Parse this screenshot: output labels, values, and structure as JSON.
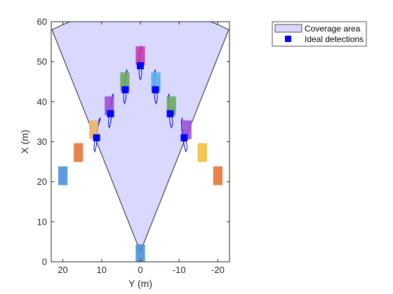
{
  "chart_data": {
    "type": "scatter",
    "xlabel": "Y (m)",
    "ylabel": "X (m)",
    "xlim": [
      23,
      -23
    ],
    "ylim": [
      0,
      60
    ],
    "x_ticks": [
      20,
      10,
      0,
      -10,
      -20
    ],
    "y_ticks": [
      0,
      10,
      20,
      30,
      40,
      50,
      60
    ],
    "x_tick_labels": [
      "20",
      "10",
      "0",
      "-10",
      "-20"
    ],
    "y_tick_labels": [
      "0",
      "10",
      "20",
      "30",
      "40",
      "50",
      "60"
    ],
    "box": true,
    "grid": false,
    "legend_position": "top-right (outside)",
    "coverage_area": {
      "apex": [
        0,
        2.5
      ],
      "left_edge_end": [
        22.8,
        58
      ],
      "right_edge_end": [
        -22.8,
        58
      ],
      "arc_peak": [
        0,
        63.5
      ],
      "color": "#d9d9ff",
      "edge_color": "#262626"
    },
    "targets": [
      {
        "y": 0,
        "x": 2,
        "color": "#4a90d9"
      },
      {
        "y": 20,
        "x": 21.5,
        "color": "#4a90d9"
      },
      {
        "y": 16,
        "x": 27.3,
        "color": "#e8743b"
      },
      {
        "y": 12,
        "x": 33,
        "color": "#edb66a"
      },
      {
        "y": 8,
        "x": 39,
        "color": "#9b4fd6"
      },
      {
        "y": 4,
        "x": 45,
        "color": "#6aaa5c"
      },
      {
        "y": 0,
        "x": 51.5,
        "color": "#c838b0"
      },
      {
        "y": -4,
        "x": 45,
        "color": "#55aef0"
      },
      {
        "y": -8,
        "x": 39,
        "color": "#6aaa5c"
      },
      {
        "y": -12,
        "x": 33,
        "color": "#9b4fd6"
      },
      {
        "y": -16,
        "x": 27.3,
        "color": "#f2c040"
      },
      {
        "y": -20,
        "x": 21.5,
        "color": "#e8743b"
      }
    ],
    "detections": [
      {
        "y": 11.3,
        "x": 31
      },
      {
        "y": 7.7,
        "x": 37
      },
      {
        "y": 3.9,
        "x": 43
      },
      {
        "y": 0,
        "x": 49
      },
      {
        "y": -3.9,
        "x": 43
      },
      {
        "y": -7.7,
        "x": 37
      },
      {
        "y": -11.3,
        "x": 31
      }
    ],
    "detection_color": "#0000ff",
    "trail_color": "#0000cc",
    "series": [
      {
        "name": "Coverage area",
        "kind": "patch"
      },
      {
        "name": "Ideal detections",
        "kind": "marker"
      }
    ]
  }
}
